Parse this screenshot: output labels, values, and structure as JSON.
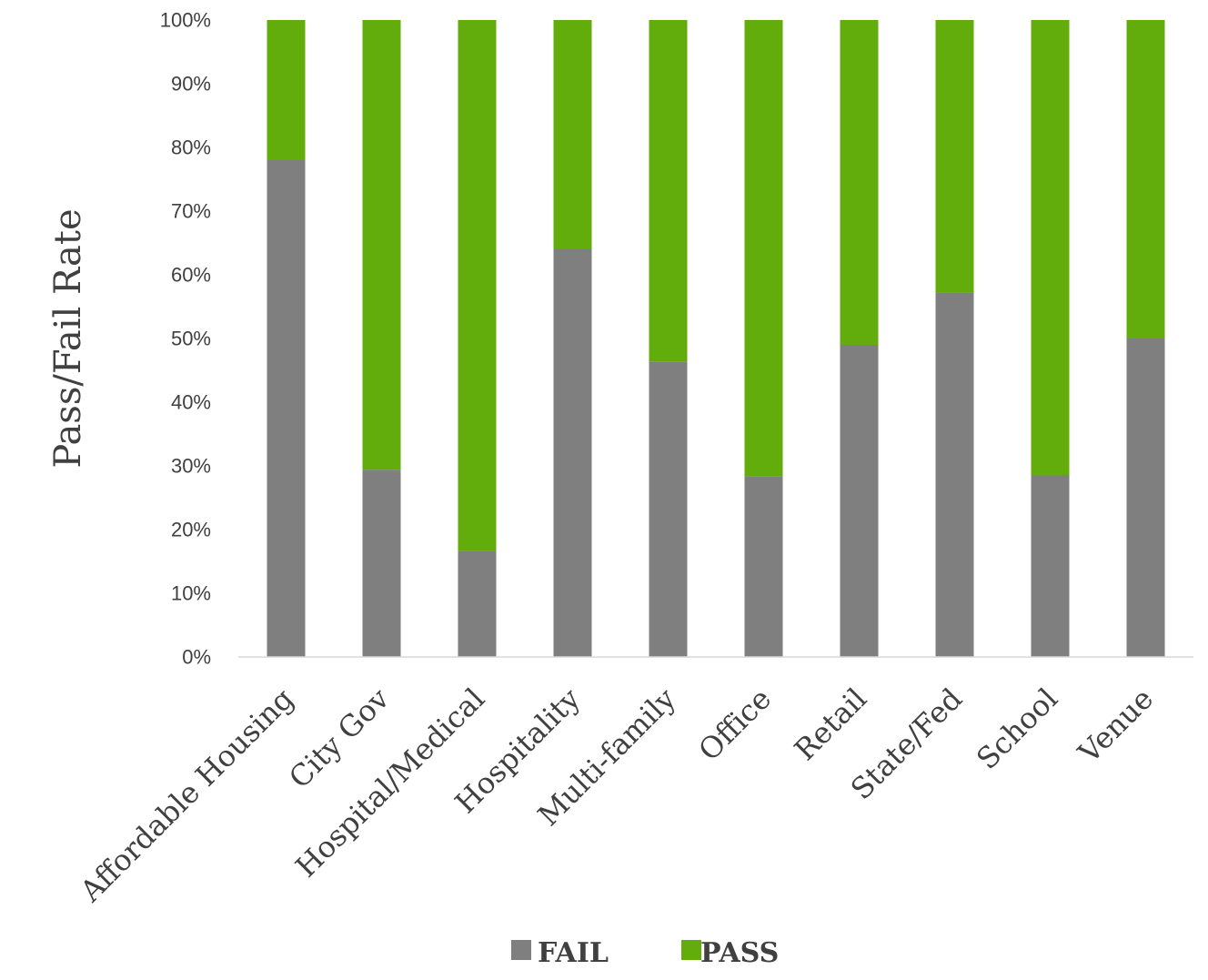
{
  "chart_data": {
    "type": "bar",
    "stacked": true,
    "categories": [
      "Affordable Housing",
      "City Gov",
      "Hospital/Medical",
      "Hospitality",
      "Multi-family",
      "Office",
      "Retail",
      "State/Fed",
      "School",
      "Venue"
    ],
    "series": [
      {
        "name": "FAIL",
        "color": "#7f7f7f",
        "values": [
          0.78,
          0.294,
          0.167,
          0.64,
          0.464,
          0.283,
          0.49,
          0.572,
          0.285,
          0.5
        ]
      },
      {
        "name": "PASS",
        "color": "#62ad0b",
        "values": [
          0.22,
          0.706,
          0.833,
          0.36,
          0.536,
          0.717,
          0.51,
          0.428,
          0.715,
          0.5
        ]
      }
    ],
    "ylabel": "Pass/Fail Rate",
    "xlabel": "",
    "ylim": [
      0,
      1
    ],
    "yticks": [
      "0%",
      "10%",
      "20%",
      "30%",
      "40%",
      "50%",
      "60%",
      "70%",
      "80%",
      "90%",
      "100%"
    ],
    "grid": false,
    "legend": "bottom"
  }
}
